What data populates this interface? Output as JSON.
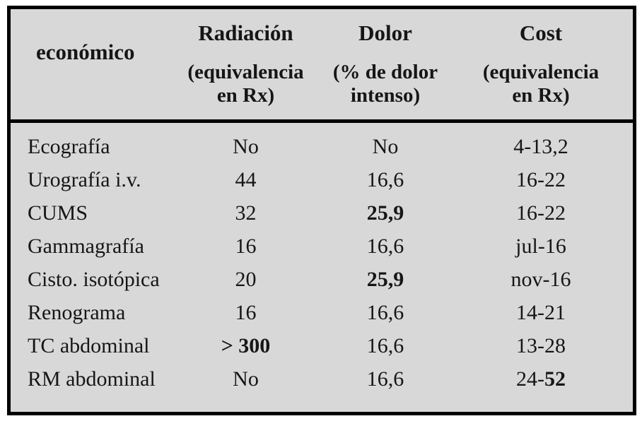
{
  "colors": {
    "page_background": "#ffffff",
    "table_background": "#d8d8d8",
    "border": "#000000",
    "text": "#161616"
  },
  "table": {
    "header": {
      "col1": {
        "title": "económico"
      },
      "col2": {
        "title": "Radiación",
        "subtitle": "(equivalencia en Rx)"
      },
      "col3": {
        "title": "Dolor",
        "subtitle": "(% de dolor intenso)"
      },
      "col4": {
        "title": "Cost",
        "subtitle": "(equivalencia en Rx)"
      }
    },
    "rows": [
      {
        "label": "Ecografía",
        "radiation": {
          "pre": "No"
        },
        "pain": {
          "pre": "No"
        },
        "cost": {
          "pre": "4-13,2"
        }
      },
      {
        "label": "Urografía i.v.",
        "radiation": {
          "pre": "44"
        },
        "pain": {
          "pre": "16,6"
        },
        "cost": {
          "pre": "16-22"
        }
      },
      {
        "label": "CUMS",
        "radiation": {
          "pre": "32"
        },
        "pain": {
          "bold": "25,9"
        },
        "cost": {
          "pre": "16-22"
        }
      },
      {
        "label": "Gammagrafía",
        "radiation": {
          "pre": "16"
        },
        "pain": {
          "pre": "16,6"
        },
        "cost": {
          "pre": "jul-16"
        }
      },
      {
        "label": "Cisto. isotópica",
        "radiation": {
          "pre": "20"
        },
        "pain": {
          "bold": "25,9"
        },
        "cost": {
          "pre": "nov-16"
        }
      },
      {
        "label": "Renograma",
        "radiation": {
          "pre": "16"
        },
        "pain": {
          "pre": "16,6"
        },
        "cost": {
          "pre": "14-21"
        }
      },
      {
        "label": "TC abdominal",
        "radiation": {
          "bold": "> 300"
        },
        "pain": {
          "pre": "16,6"
        },
        "cost": {
          "pre": "13-28"
        }
      },
      {
        "label": "RM abdominal",
        "radiation": {
          "pre": "No"
        },
        "pain": {
          "pre": "16,6"
        },
        "cost": {
          "pre": "24-",
          "bold": "52"
        }
      }
    ]
  }
}
